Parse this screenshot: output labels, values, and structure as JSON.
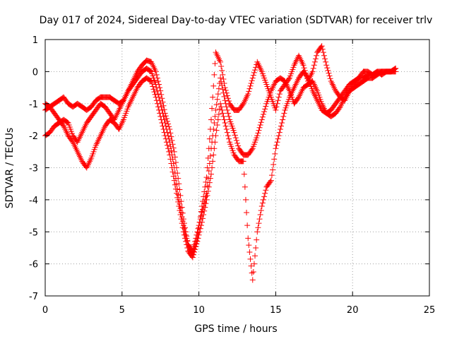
{
  "chart_data": {
    "type": "scatter",
    "title": "Day 017 of 2024, Sidereal Day-to-day VTEC variation (SDTVAR) for receiver trlv",
    "xlabel": "GPS time / hours",
    "ylabel": "SDTVAR / TECUs",
    "xlim": [
      0,
      25
    ],
    "ylim": [
      -7,
      1
    ],
    "xticks": [
      0,
      5,
      10,
      15,
      20,
      25
    ],
    "yticks": [
      1,
      0,
      -1,
      -2,
      -3,
      -4,
      -5,
      -6,
      -7
    ],
    "grid": true,
    "marker": "+",
    "color": "#ff0000",
    "series": [
      {
        "x": [
          0.0,
          0.3,
          0.6,
          0.9,
          1.2,
          1.5,
          1.8,
          2.1,
          2.4,
          2.7,
          3.0,
          3.3,
          3.6,
          3.9,
          4.2,
          4.5,
          4.8,
          5.1,
          5.4,
          5.7,
          6.0,
          6.3,
          6.6,
          6.9,
          7.2,
          7.5,
          7.8,
          8.1,
          8.4,
          8.7,
          9.0,
          9.3,
          9.6,
          9.9,
          10.2,
          10.5,
          10.8,
          11.1,
          11.4,
          11.7,
          12.0,
          12.3,
          12.6,
          12.9,
          13.2,
          13.5,
          13.8,
          14.1,
          14.4,
          14.7,
          15.0,
          15.3,
          15.6,
          15.9,
          16.2,
          16.5,
          16.8,
          17.1,
          17.4,
          17.7,
          18.0,
          18.3,
          18.6,
          18.9,
          19.2,
          19.5,
          19.8,
          20.1,
          20.4,
          20.7,
          21.0,
          21.3,
          21.6,
          21.9,
          22.2,
          22.5,
          22.8
        ],
        "y": [
          -1.2,
          -1.1,
          -1.0,
          -0.9,
          -0.8,
          -1.0,
          -1.1,
          -1.0,
          -1.1,
          -1.2,
          -1.1,
          -0.9,
          -0.8,
          -0.8,
          -0.8,
          -0.9,
          -1.0,
          -0.9,
          -0.6,
          -0.3,
          0.0,
          0.2,
          0.35,
          0.3,
          0.0,
          -0.6,
          -1.3,
          -1.8,
          -2.5,
          -3.5,
          -4.6,
          -5.4,
          -5.7,
          -5.2,
          -4.2,
          -3.3,
          -1.5,
          0.6,
          0.3,
          -0.5,
          -1.0,
          -1.2,
          -1.2,
          -1.0,
          -0.7,
          -0.2,
          0.3,
          0.0,
          -0.4,
          -0.8,
          -1.2,
          -0.6,
          -0.4,
          -0.2,
          0.2,
          0.5,
          0.2,
          -0.3,
          0.0,
          0.6,
          0.8,
          0.2,
          -0.3,
          -0.6,
          -0.8,
          -0.9,
          -0.6,
          -0.4,
          -0.2,
          0.0,
          0.0,
          -0.1,
          0.0,
          0.0,
          0.0,
          0.0,
          0.1
        ]
      },
      {
        "x": [
          0.0,
          0.3,
          0.6,
          0.9,
          1.2,
          1.5,
          1.8,
          2.1,
          2.4,
          2.7,
          3.0,
          3.3,
          3.6,
          3.9,
          4.2,
          4.5,
          4.8,
          5.1,
          5.4,
          5.7,
          6.0,
          6.3,
          6.6,
          6.9,
          7.2,
          7.5,
          7.8,
          8.1,
          8.4,
          8.7,
          9.0,
          9.3,
          9.6,
          9.9,
          10.2,
          10.5,
          10.8,
          11.1,
          11.4,
          11.7,
          12.0,
          12.3,
          12.6,
          12.9,
          13.2,
          13.5,
          13.8,
          14.1,
          14.4,
          14.7,
          15.0,
          15.3,
          15.6,
          15.9,
          16.2,
          16.5,
          16.8,
          17.1,
          17.4,
          17.7,
          18.0,
          18.3,
          18.6,
          18.9,
          19.2,
          19.5,
          19.8,
          20.1,
          20.4,
          20.7,
          21.0,
          21.3,
          21.6,
          21.9,
          22.2,
          22.5,
          22.8
        ],
        "y": [
          -2.0,
          -1.9,
          -1.7,
          -1.6,
          -1.5,
          -1.6,
          -2.0,
          -2.2,
          -1.9,
          -1.6,
          -1.4,
          -1.2,
          -1.0,
          -1.1,
          -1.3,
          -1.5,
          -1.2,
          -0.9,
          -0.6,
          -0.4,
          -0.2,
          0.0,
          0.1,
          0.0,
          -0.4,
          -1.0,
          -1.6,
          -2.2,
          -3.0,
          -4.0,
          -4.8,
          -5.4,
          -5.6,
          -5.0,
          -4.4,
          -3.8,
          -2.4,
          -1.2,
          -0.2,
          -0.9,
          -1.5,
          -1.9,
          -2.4,
          -2.6,
          -2.6,
          -2.4,
          -2.0,
          -1.5,
          -1.0,
          -0.6,
          -0.3,
          -0.2,
          -0.3,
          -0.6,
          -1.0,
          -0.8,
          -0.5,
          -0.4,
          -0.3,
          -0.6,
          -1.0,
          -1.3,
          -1.4,
          -1.3,
          -1.1,
          -0.8,
          -0.6,
          -0.5,
          -0.4,
          -0.3,
          -0.2,
          -0.2,
          -0.1,
          0.0,
          0.0,
          0.0,
          0.1
        ]
      },
      {
        "x": [
          0.0,
          0.3,
          0.6,
          0.9,
          1.2,
          1.5,
          1.8,
          2.1,
          2.4,
          2.7,
          3.0,
          3.3,
          3.6,
          3.9,
          4.2,
          4.5,
          4.8,
          5.1,
          5.4,
          5.7,
          6.0,
          6.3,
          6.6,
          6.9,
          7.2,
          7.5,
          7.8,
          8.1,
          8.4,
          8.7,
          9.0,
          9.3,
          9.6,
          9.9,
          10.2,
          10.5,
          10.8,
          11.1,
          11.4,
          11.7,
          12.0,
          12.3,
          12.6,
          12.9,
          13.2,
          13.5,
          13.8,
          14.1,
          14.4,
          14.7,
          15.0,
          15.3,
          15.6,
          15.9,
          16.2,
          16.5,
          16.8,
          17.1,
          17.4,
          17.7,
          18.0,
          18.3,
          18.6,
          18.9,
          19.2,
          19.5,
          19.8,
          20.1,
          20.4,
          20.7,
          21.0,
          21.3,
          21.6,
          21.9,
          22.2,
          22.5,
          22.8
        ],
        "y": [
          -1.0,
          -1.1,
          -1.3,
          -1.5,
          -1.7,
          -2.0,
          -2.2,
          -2.5,
          -2.8,
          -3.0,
          -2.7,
          -2.3,
          -2.0,
          -1.7,
          -1.5,
          -1.6,
          -1.8,
          -1.5,
          -1.1,
          -0.8,
          -0.5,
          -0.3,
          -0.2,
          -0.3,
          -0.8,
          -1.4,
          -2.0,
          -2.6,
          -3.4,
          -4.2,
          -5.0,
          -5.6,
          -5.8,
          -5.3,
          -4.7,
          -4.0,
          -3.2,
          -2.0,
          -1.0,
          -1.6,
          -2.2,
          -2.6,
          -2.8,
          -2.8,
          -5.2,
          -6.5,
          -5.0,
          -4.2,
          -3.6,
          -3.4,
          -2.4,
          -1.8,
          -1.2,
          -0.8,
          -0.5,
          -0.2,
          0.0,
          -0.2,
          -0.6,
          -0.9,
          -1.2,
          -1.3,
          -1.2,
          -1.0,
          -0.8,
          -0.6,
          -0.4,
          -0.3,
          -0.2,
          -0.2,
          -0.1,
          -0.1,
          0.0,
          -0.1,
          0.0,
          0.0,
          0.0
        ]
      }
    ]
  }
}
